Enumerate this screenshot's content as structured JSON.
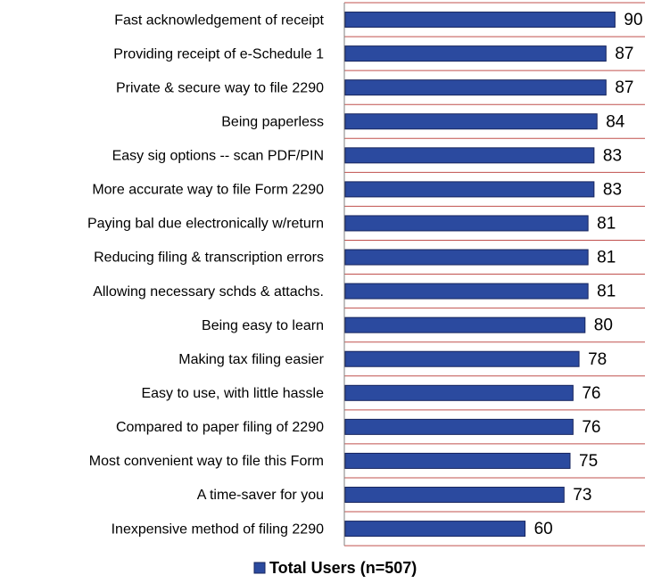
{
  "chart_data": {
    "type": "bar",
    "orientation": "horizontal",
    "categories": [
      "Fast acknowledgement of receipt",
      "Providing receipt of e-Schedule 1",
      "Private & secure way to file 2290",
      "Being paperless",
      "Easy sig options -- scan PDF/PIN",
      "More accurate way to file Form 2290",
      "Paying bal due electronically w/return",
      "Reducing filing & transcription errors",
      "Allowing necessary schds & attachs.",
      "Being easy to learn",
      "Making tax filing easier",
      "Easy to use, with little hassle",
      "Compared to paper filing of 2290",
      "Most convenient way to file this Form",
      "A time-saver for you",
      "Inexpensive method of filing 2290"
    ],
    "series": [
      {
        "name": "Total Users (n=507)",
        "color": "#2b4a9f",
        "values": [
          90,
          87,
          87,
          84,
          83,
          83,
          81,
          81,
          81,
          80,
          78,
          76,
          76,
          75,
          73,
          60
        ]
      }
    ],
    "xlim": [
      0,
      100
    ],
    "legend": "bottom"
  }
}
